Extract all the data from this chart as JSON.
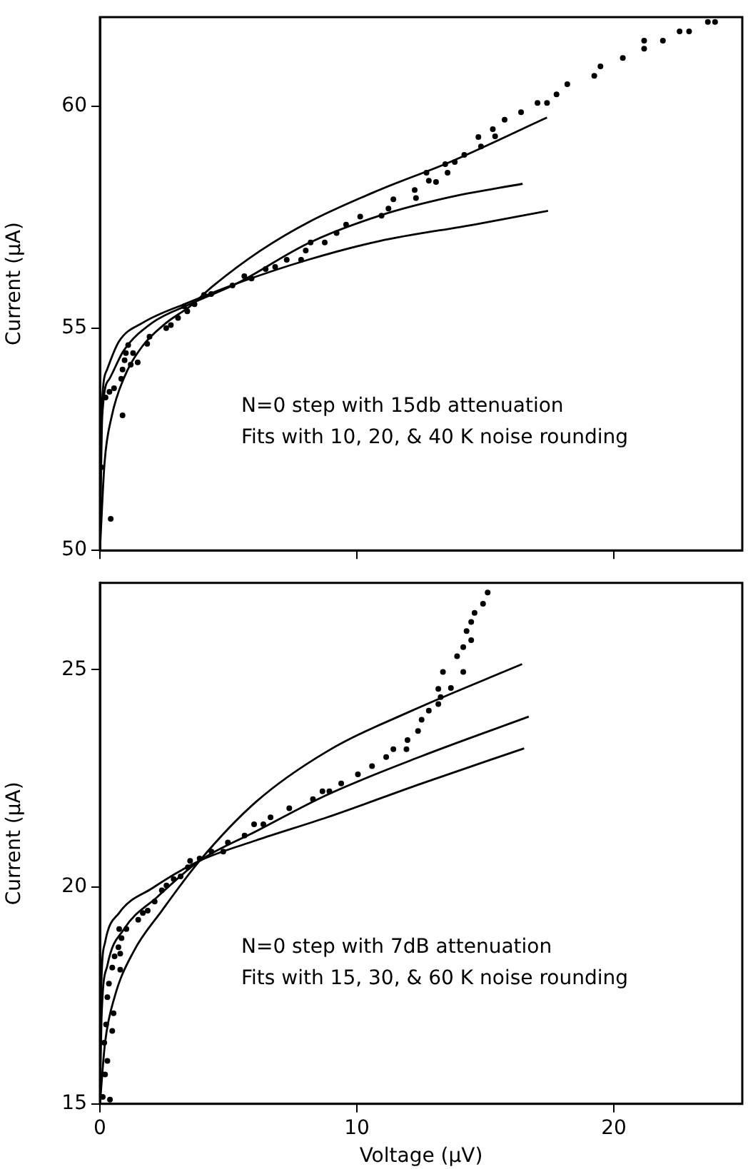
{
  "chart_data": [
    {
      "type": "scatter",
      "ylabel": "Current (μA)",
      "xlim": [
        0,
        25
      ],
      "xticks": [
        0,
        10,
        20
      ],
      "ylim": [
        50,
        62
      ],
      "yticks": [
        50,
        55,
        60
      ],
      "tick_labels": "y",
      "grid": false,
      "legend": false,
      "annotations": [
        "N=0 step with 15db attenuation",
        "Fits with 10, 20, & 40 K noise rounding"
      ],
      "series": [
        {
          "color": "#000000",
          "marker": "circle",
          "x": [
            0.05,
            0.42,
            0.22,
            0.37,
            0.55,
            0.83,
            0.88,
            0.96,
            1.01,
            1.1,
            1.2,
            1.29,
            1.47,
            0.88,
            1.84,
            1.93,
            2.58,
            2.76,
            3.04,
            3.28,
            3.4,
            3.68,
            4.05,
            4.33,
            5.16,
            5.62,
            5.9,
            6.45,
            6.82,
            7.27,
            7.83,
            8.01,
            8.2,
            8.75,
            9.21,
            9.58,
            10.13,
            10.96,
            11.23,
            11.42,
            12.25,
            12.3,
            12.71,
            12.8,
            13.08,
            13.44,
            13.53,
            13.81,
            14.18,
            14.73,
            14.83,
            15.29,
            15.38,
            15.75,
            16.39,
            17.03,
            17.4,
            17.77,
            18.19,
            19.24,
            19.48,
            20.35,
            21.18,
            21.18,
            21.91,
            22.56,
            22.93,
            23.66,
            23.94
          ],
          "values": [
            51.87,
            50.71,
            53.44,
            53.57,
            53.65,
            53.86,
            54.07,
            54.28,
            54.44,
            54.62,
            54.18,
            54.44,
            54.23,
            53.04,
            54.65,
            54.81,
            55.0,
            55.07,
            55.23,
            55.49,
            55.38,
            55.54,
            55.75,
            55.77,
            55.96,
            56.17,
            56.12,
            56.33,
            56.38,
            56.54,
            56.54,
            56.75,
            56.93,
            56.93,
            57.14,
            57.33,
            57.51,
            57.53,
            57.69,
            57.9,
            58.11,
            57.93,
            58.5,
            58.32,
            58.29,
            58.69,
            58.5,
            58.74,
            58.9,
            59.3,
            59.09,
            59.48,
            59.32,
            59.69,
            59.86,
            60.07,
            60.07,
            60.26,
            60.49,
            60.68,
            60.89,
            61.08,
            61.29,
            61.47,
            61.47,
            61.68,
            61.68,
            61.89,
            61.89
          ]
        },
        {
          "type": "line",
          "color": "#000000",
          "marker": "none",
          "line_style": "solid",
          "x": [
            0,
            0.18,
            0.46,
            0.92,
            1.66,
            2.58,
            3.5,
            4.42,
            6.26,
            8.1,
            10.87,
            13.63,
            17.4
          ],
          "values": [
            50,
            51.97,
            53.02,
            53.86,
            54.6,
            55.12,
            55.49,
            55.96,
            56.75,
            57.38,
            58.11,
            58.74,
            59.74
          ]
        },
        {
          "type": "line",
          "color": "#000000",
          "marker": "none",
          "line_style": "solid",
          "x": [
            0,
            0.09,
            0.37,
            0.92,
            2.03,
            3.5,
            5.34,
            8.1,
            10.87,
            13.63,
            16.45
          ],
          "values": [
            50,
            53.02,
            53.86,
            54.49,
            55.12,
            55.54,
            56.01,
            56.91,
            57.53,
            57.95,
            58.25
          ]
        },
        {
          "type": "line",
          "color": "#000000",
          "marker": "none",
          "line_style": "solid",
          "x": [
            0,
            0.06,
            0.28,
            0.74,
            1.66,
            3.5,
            5.34,
            8.1,
            10.87,
            14.55,
            17.44
          ],
          "values": [
            50,
            53.02,
            54.07,
            54.7,
            55.12,
            55.59,
            56.01,
            56.54,
            56.96,
            57.33,
            57.64
          ]
        }
      ]
    },
    {
      "type": "scatter",
      "xlabel": "Voltage (μV)",
      "ylabel": "Current (μA)",
      "xlim": [
        0,
        25
      ],
      "xticks": [
        0,
        10,
        20
      ],
      "ylim": [
        15,
        27
      ],
      "yticks": [
        15,
        20,
        25
      ],
      "grid": false,
      "legend": false,
      "annotations": [
        "N=0 step with 7dB attenuation",
        "Fits with 15, 30, & 60 K noise rounding"
      ],
      "series": [
        {
          "color": "#000000",
          "marker": "circle",
          "x": [
            0.11,
            0.2,
            0.29,
            0.39,
            0.17,
            0.24,
            0.29,
            0.35,
            0.48,
            0.48,
            0.53,
            0.57,
            0.72,
            0.79,
            0.79,
            0.84,
            0.75,
            1.03,
            1.49,
            1.67,
            1.86,
            2.13,
            2.41,
            2.59,
            2.87,
            3.14,
            3.42,
            3.51,
            3.88,
            4.34,
            4.8,
            4.98,
            5.63,
            6.0,
            6.36,
            6.64,
            7.37,
            8.29,
            8.66,
            8.93,
            9.39,
            10.04,
            10.59,
            11.14,
            11.42,
            11.97,
            11.93,
            12.38,
            12.52,
            12.8,
            13.17,
            13.26,
            13.17,
            13.66,
            13.35,
            13.9,
            14.14,
            14.14,
            14.27,
            14.45,
            14.45,
            14.58,
            14.91,
            15.09
          ],
          "values": [
            15.16,
            15.68,
            15.99,
            15.1,
            16.41,
            16.83,
            17.46,
            17.77,
            18.14,
            16.68,
            17.09,
            18.4,
            18.61,
            18.46,
            18.09,
            18.82,
            19.03,
            19.03,
            19.24,
            19.4,
            19.45,
            19.66,
            19.92,
            20.03,
            20.18,
            20.24,
            20.45,
            20.6,
            20.65,
            20.81,
            20.81,
            21.02,
            21.18,
            21.44,
            21.44,
            21.6,
            21.81,
            22.02,
            22.2,
            22.2,
            22.38,
            22.59,
            22.78,
            22.99,
            23.17,
            23.38,
            23.17,
            23.59,
            23.85,
            24.06,
            24.21,
            24.37,
            24.56,
            24.58,
            24.95,
            25.31,
            24.95,
            25.52,
            25.89,
            25.68,
            26.1,
            26.31,
            26.52,
            26.78
          ]
        },
        {
          "type": "line",
          "color": "#000000",
          "marker": "none",
          "line_style": "solid",
          "x": [
            0,
            0.2,
            0.57,
            1.31,
            2.41,
            3.88,
            6.08,
            8.84,
            12.15,
            16.43
          ],
          "values": [
            15,
            16.41,
            17.46,
            18.51,
            19.45,
            20.6,
            21.96,
            23.12,
            24.06,
            25.13
          ]
        },
        {
          "type": "line",
          "color": "#000000",
          "marker": "none",
          "line_style": "solid",
          "x": [
            0,
            0.06,
            0.29,
            0.94,
            2.22,
            3.88,
            6.08,
            8.84,
            12.52,
            16.69
          ],
          "values": [
            15,
            16.94,
            18.19,
            19.03,
            19.76,
            20.6,
            21.28,
            22.12,
            23.01,
            23.92
          ]
        },
        {
          "type": "line",
          "color": "#000000",
          "marker": "none",
          "line_style": "solid",
          "x": [
            0,
            0.04,
            0.2,
            0.75,
            2.04,
            3.88,
            6.08,
            8.84,
            12.52,
            16.51
          ],
          "values": [
            15,
            17.46,
            18.72,
            19.4,
            19.97,
            20.6,
            21.07,
            21.6,
            22.38,
            23.19
          ]
        }
      ]
    }
  ]
}
